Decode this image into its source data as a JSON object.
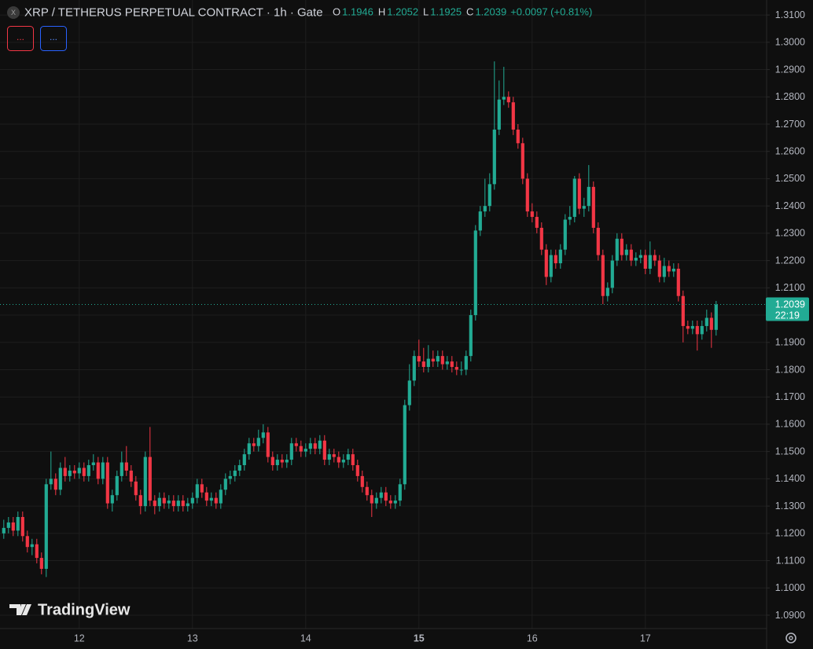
{
  "chart_data": {
    "type": "candlestick",
    "title": "XRP / TETHERUS PERPETUAL CONTRACT · 1h · Gate",
    "ohlc_letters": [
      "O",
      "H",
      "L",
      "C"
    ],
    "change": "+0.0097 (+0.81%)",
    "countdown": "22:19",
    "indicator_buttons": [
      "...",
      "..."
    ],
    "brand": "TradingView",
    "up_color": "#22ab94",
    "down_color": "#f23645",
    "grid": true,
    "xlim": [
      -0.8,
      161.7
    ],
    "xticks": [
      {
        "value": 16,
        "label": "12"
      },
      {
        "value": 40,
        "label": "13"
      },
      {
        "value": 64,
        "label": "14"
      },
      {
        "value": 88,
        "label": "15"
      },
      {
        "value": 112,
        "label": "16"
      },
      {
        "value": 136,
        "label": "17"
      }
    ],
    "ylim": [
      1.0851,
      1.3155
    ],
    "yticks": [
      {
        "value": 1.31,
        "label": "1.3100"
      },
      {
        "value": 1.3,
        "label": "1.3000"
      },
      {
        "value": 1.29,
        "label": "1.2900"
      },
      {
        "value": 1.28,
        "label": "1.2800"
      },
      {
        "value": 1.27,
        "label": "1.2700"
      },
      {
        "value": 1.26,
        "label": "1.2600"
      },
      {
        "value": 1.25,
        "label": "1.2500"
      },
      {
        "value": 1.24,
        "label": "1.2400"
      },
      {
        "value": 1.23,
        "label": "1.2300"
      },
      {
        "value": 1.22,
        "label": "1.2200"
      },
      {
        "value": 1.21,
        "label": "1.2100"
      },
      {
        "value": 1.2,
        "label": "1.2000"
      },
      {
        "value": 1.19,
        "label": "1.1900"
      },
      {
        "value": 1.18,
        "label": "1.1800"
      },
      {
        "value": 1.17,
        "label": "1.1700"
      },
      {
        "value": 1.16,
        "label": "1.1600"
      },
      {
        "value": 1.15,
        "label": "1.1500"
      },
      {
        "value": 1.14,
        "label": "1.1400"
      },
      {
        "value": 1.13,
        "label": "1.1300"
      },
      {
        "value": 1.12,
        "label": "1.1200"
      },
      {
        "value": 1.11,
        "label": "1.1100"
      },
      {
        "value": 1.1,
        "label": "1.1000"
      },
      {
        "value": 1.09,
        "label": "1.0900"
      }
    ],
    "candles": [
      [
        1.12,
        1.125,
        1.118,
        1.122
      ],
      [
        1.122,
        1.126,
        1.12,
        1.124
      ],
      [
        1.124,
        1.126,
        1.119,
        1.121
      ],
      [
        1.121,
        1.128,
        1.119,
        1.126
      ],
      [
        1.126,
        1.128,
        1.117,
        1.119
      ],
      [
        1.119,
        1.121,
        1.113,
        1.115
      ],
      [
        1.115,
        1.118,
        1.112,
        1.116
      ],
      [
        1.116,
        1.118,
        1.109,
        1.111
      ],
      [
        1.111,
        1.113,
        1.105,
        1.107
      ],
      [
        1.107,
        1.14,
        1.104,
        1.138
      ],
      [
        1.138,
        1.15,
        1.136,
        1.14
      ],
      [
        1.14,
        1.142,
        1.134,
        1.136
      ],
      [
        1.136,
        1.146,
        1.134,
        1.144
      ],
      [
        1.144,
        1.148,
        1.139,
        1.141
      ],
      [
        1.141,
        1.145,
        1.139,
        1.143
      ],
      [
        1.143,
        1.145,
        1.14,
        1.142
      ],
      [
        1.142,
        1.146,
        1.14,
        1.144
      ],
      [
        1.144,
        1.146,
        1.139,
        1.141
      ],
      [
        1.141,
        1.147,
        1.139,
        1.145
      ],
      [
        1.145,
        1.149,
        1.143,
        1.146
      ],
      [
        1.146,
        1.148,
        1.138,
        1.14
      ],
      [
        1.14,
        1.148,
        1.138,
        1.146
      ],
      [
        1.146,
        1.148,
        1.129,
        1.131
      ],
      [
        1.131,
        1.136,
        1.128,
        1.134
      ],
      [
        1.134,
        1.143,
        1.132,
        1.141
      ],
      [
        1.141,
        1.15,
        1.139,
        1.146
      ],
      [
        1.146,
        1.152,
        1.141,
        1.143
      ],
      [
        1.143,
        1.145,
        1.137,
        1.139
      ],
      [
        1.139,
        1.141,
        1.132,
        1.134
      ],
      [
        1.134,
        1.136,
        1.127,
        1.13
      ],
      [
        1.13,
        1.15,
        1.128,
        1.148
      ],
      [
        1.148,
        1.159,
        1.13,
        1.132
      ],
      [
        1.132,
        1.134,
        1.127,
        1.13
      ],
      [
        1.13,
        1.135,
        1.128,
        1.133
      ],
      [
        1.133,
        1.135,
        1.129,
        1.131
      ],
      [
        1.131,
        1.134,
        1.129,
        1.132
      ],
      [
        1.132,
        1.134,
        1.128,
        1.13
      ],
      [
        1.13,
        1.134,
        1.128,
        1.132
      ],
      [
        1.132,
        1.134,
        1.128,
        1.13
      ],
      [
        1.13,
        1.133,
        1.128,
        1.131
      ],
      [
        1.131,
        1.135,
        1.129,
        1.133
      ],
      [
        1.133,
        1.14,
        1.131,
        1.138
      ],
      [
        1.138,
        1.14,
        1.133,
        1.135
      ],
      [
        1.135,
        1.137,
        1.13,
        1.132
      ],
      [
        1.132,
        1.135,
        1.13,
        1.133
      ],
      [
        1.133,
        1.135,
        1.129,
        1.131
      ],
      [
        1.131,
        1.138,
        1.129,
        1.136
      ],
      [
        1.136,
        1.142,
        1.134,
        1.14
      ],
      [
        1.14,
        1.143,
        1.138,
        1.141
      ],
      [
        1.141,
        1.145,
        1.139,
        1.143
      ],
      [
        1.143,
        1.147,
        1.141,
        1.145
      ],
      [
        1.145,
        1.151,
        1.143,
        1.149
      ],
      [
        1.149,
        1.155,
        1.147,
        1.153
      ],
      [
        1.153,
        1.155,
        1.15,
        1.152
      ],
      [
        1.152,
        1.158,
        1.15,
        1.155
      ],
      [
        1.155,
        1.16,
        1.153,
        1.157
      ],
      [
        1.157,
        1.159,
        1.146,
        1.148
      ],
      [
        1.148,
        1.15,
        1.143,
        1.145
      ],
      [
        1.145,
        1.149,
        1.143,
        1.147
      ],
      [
        1.147,
        1.149,
        1.144,
        1.146
      ],
      [
        1.146,
        1.149,
        1.144,
        1.147
      ],
      [
        1.147,
        1.155,
        1.145,
        1.153
      ],
      [
        1.153,
        1.155,
        1.15,
        1.152
      ],
      [
        1.152,
        1.154,
        1.148,
        1.15
      ],
      [
        1.15,
        1.153,
        1.148,
        1.151
      ],
      [
        1.151,
        1.155,
        1.149,
        1.153
      ],
      [
        1.153,
        1.155,
        1.149,
        1.151
      ],
      [
        1.151,
        1.156,
        1.149,
        1.154
      ],
      [
        1.154,
        1.156,
        1.145,
        1.147
      ],
      [
        1.147,
        1.151,
        1.145,
        1.149
      ],
      [
        1.149,
        1.151,
        1.146,
        1.148
      ],
      [
        1.148,
        1.15,
        1.144,
        1.146
      ],
      [
        1.146,
        1.149,
        1.144,
        1.147
      ],
      [
        1.147,
        1.151,
        1.145,
        1.149
      ],
      [
        1.149,
        1.151,
        1.143,
        1.145
      ],
      [
        1.145,
        1.147,
        1.139,
        1.141
      ],
      [
        1.141,
        1.143,
        1.135,
        1.137
      ],
      [
        1.137,
        1.139,
        1.132,
        1.134
      ],
      [
        1.134,
        1.136,
        1.126,
        1.131
      ],
      [
        1.131,
        1.135,
        1.129,
        1.133
      ],
      [
        1.133,
        1.137,
        1.131,
        1.135
      ],
      [
        1.135,
        1.137,
        1.13,
        1.132
      ],
      [
        1.132,
        1.134,
        1.129,
        1.131
      ],
      [
        1.131,
        1.134,
        1.129,
        1.132
      ],
      [
        1.132,
        1.14,
        1.13,
        1.138
      ],
      [
        1.138,
        1.169,
        1.136,
        1.167
      ],
      [
        1.167,
        1.182,
        1.165,
        1.176
      ],
      [
        1.176,
        1.187,
        1.174,
        1.185
      ],
      [
        1.185,
        1.191,
        1.181,
        1.183
      ],
      [
        1.183,
        1.188,
        1.179,
        1.181
      ],
      [
        1.181,
        1.189,
        1.179,
        1.184
      ],
      [
        1.184,
        1.187,
        1.181,
        1.183
      ],
      [
        1.183,
        1.187,
        1.181,
        1.185
      ],
      [
        1.185,
        1.187,
        1.18,
        1.182
      ],
      [
        1.182,
        1.185,
        1.18,
        1.183
      ],
      [
        1.183,
        1.185,
        1.179,
        1.181
      ],
      [
        1.181,
        1.183,
        1.178,
        1.18
      ],
      [
        1.18,
        1.183,
        1.178,
        1.18
      ],
      [
        1.18,
        1.187,
        1.178,
        1.185
      ],
      [
        1.185,
        1.202,
        1.183,
        1.2
      ],
      [
        1.2,
        1.233,
        1.198,
        1.231
      ],
      [
        1.231,
        1.24,
        1.229,
        1.238
      ],
      [
        1.238,
        1.25,
        1.236,
        1.24
      ],
      [
        1.24,
        1.252,
        1.238,
        1.248
      ],
      [
        1.248,
        1.293,
        1.246,
        1.268
      ],
      [
        1.268,
        1.286,
        1.266,
        1.279
      ],
      [
        1.279,
        1.291,
        1.277,
        1.28
      ],
      [
        1.28,
        1.282,
        1.276,
        1.278
      ],
      [
        1.278,
        1.28,
        1.266,
        1.268
      ],
      [
        1.268,
        1.27,
        1.261,
        1.263
      ],
      [
        1.263,
        1.265,
        1.248,
        1.25
      ],
      [
        1.25,
        1.252,
        1.236,
        1.238
      ],
      [
        1.238,
        1.241,
        1.234,
        1.236
      ],
      [
        1.236,
        1.238,
        1.23,
        1.232
      ],
      [
        1.232,
        1.234,
        1.222,
        1.224
      ],
      [
        1.224,
        1.226,
        1.211,
        1.214
      ],
      [
        1.214,
        1.224,
        1.212,
        1.222
      ],
      [
        1.222,
        1.224,
        1.217,
        1.219
      ],
      [
        1.219,
        1.226,
        1.217,
        1.224
      ],
      [
        1.224,
        1.237,
        1.222,
        1.235
      ],
      [
        1.235,
        1.24,
        1.233,
        1.236
      ],
      [
        1.236,
        1.251,
        1.234,
        1.25
      ],
      [
        1.25,
        1.252,
        1.237,
        1.239
      ],
      [
        1.239,
        1.243,
        1.236,
        1.24
      ],
      [
        1.24,
        1.255,
        1.238,
        1.247
      ],
      [
        1.247,
        1.249,
        1.23,
        1.232
      ],
      [
        1.232,
        1.234,
        1.22,
        1.222
      ],
      [
        1.222,
        1.224,
        1.204,
        1.207
      ],
      [
        1.207,
        1.212,
        1.205,
        1.21
      ],
      [
        1.21,
        1.222,
        1.208,
        1.22
      ],
      [
        1.22,
        1.23,
        1.218,
        1.228
      ],
      [
        1.228,
        1.23,
        1.22,
        1.222
      ],
      [
        1.222,
        1.226,
        1.22,
        1.224
      ],
      [
        1.224,
        1.226,
        1.218,
        1.22
      ],
      [
        1.22,
        1.223,
        1.218,
        1.221
      ],
      [
        1.221,
        1.224,
        1.219,
        1.222
      ],
      [
        1.222,
        1.224,
        1.215,
        1.217
      ],
      [
        1.217,
        1.227,
        1.215,
        1.222
      ],
      [
        1.222,
        1.224,
        1.218,
        1.22
      ],
      [
        1.22,
        1.222,
        1.212,
        1.214
      ],
      [
        1.214,
        1.221,
        1.212,
        1.218
      ],
      [
        1.218,
        1.22,
        1.214,
        1.216
      ],
      [
        1.216,
        1.219,
        1.214,
        1.217
      ],
      [
        1.217,
        1.219,
        1.205,
        1.207
      ],
      [
        1.207,
        1.209,
        1.19,
        1.196
      ],
      [
        1.196,
        1.198,
        1.193,
        1.195
      ],
      [
        1.195,
        1.198,
        1.193,
        1.196
      ],
      [
        1.196,
        1.198,
        1.187,
        1.193
      ],
      [
        1.193,
        1.198,
        1.191,
        1.196
      ],
      [
        1.196,
        1.202,
        1.194,
        1.199
      ],
      [
        1.199,
        1.201,
        1.188,
        1.1946
      ],
      [
        1.1946,
        1.2052,
        1.1925,
        1.2039
      ]
    ]
  }
}
